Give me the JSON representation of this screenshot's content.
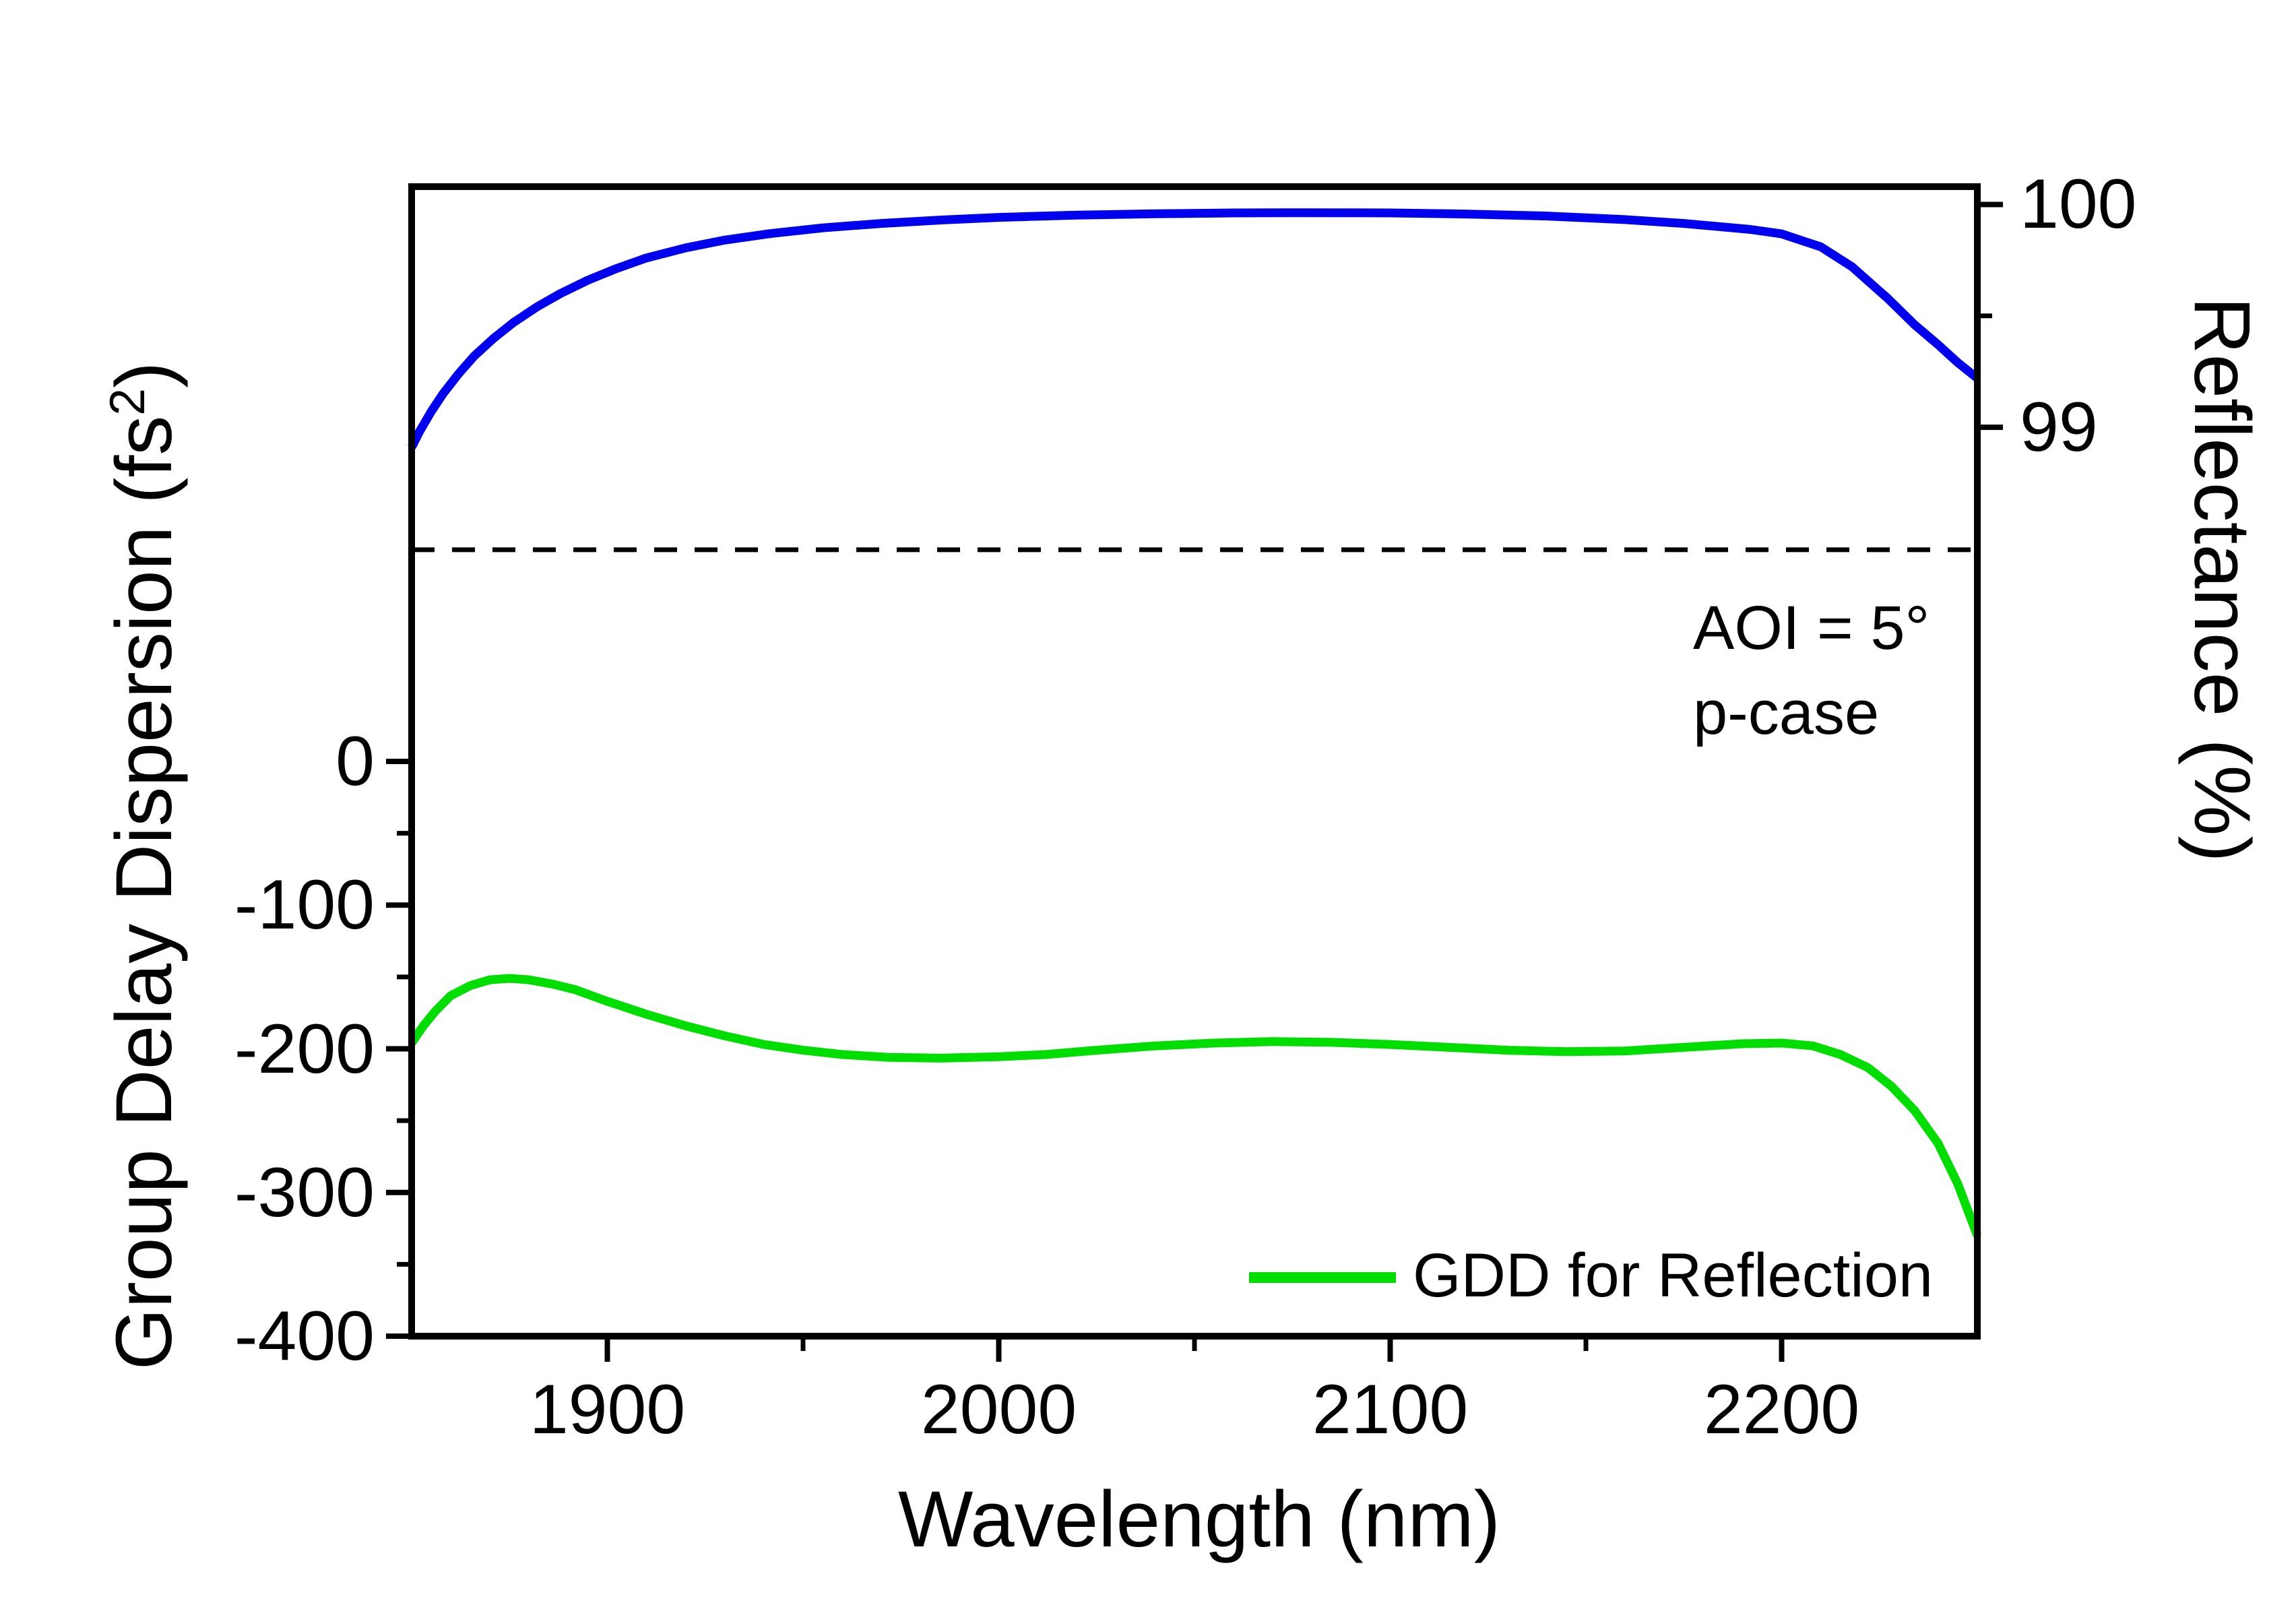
{
  "figure": {
    "background": "#ffffff",
    "frame_color": "#000000"
  },
  "plot": {
    "x_axis": {
      "label": "Wavelength (nm)",
      "range": [
        1850,
        2250
      ],
      "major_ticks": [
        1900,
        2000,
        2100,
        2200
      ],
      "minor_ticks": [
        1950,
        2050,
        2150
      ]
    },
    "y_axis_left": {
      "label_parts": [
        "Group Delay Dispersion (fs",
        "2",
        ")"
      ],
      "range": [
        -400,
        400
      ],
      "major_ticks": [
        0,
        -100,
        -200,
        -300,
        -400
      ],
      "minor_ticks": [
        -50,
        -150,
        -250,
        -350
      ]
    },
    "y_axis_right": {
      "label": "Reflectance (%)",
      "range": [
        94.92,
        100.08
      ],
      "major_ticks": [
        100,
        99
      ],
      "minor_ticks": [
        99.5
      ]
    },
    "annotations": {
      "aoi": "AOI = 5°",
      "case": "p-case"
    },
    "dashed_line": {
      "reflectance_value": 98.45,
      "color": "#000000"
    },
    "legend": {
      "label": "GDD for Reflection",
      "color": "#00dd00"
    }
  },
  "chart_data": {
    "type": "line",
    "title": "",
    "xlabel": "Wavelength (nm)",
    "ylabel_left": "Group Delay Dispersion (fs2)",
    "ylabel_right": "Reflectance (%)",
    "xlim": [
      1850,
      2250
    ],
    "ylim_left": [
      -400,
      400
    ],
    "ylim_right": [
      94.92,
      100.08
    ],
    "grid": false,
    "legend_position": "lower right",
    "guide_line": {
      "type": "horizontal-dashed",
      "axis": "right",
      "value": 98.45
    },
    "series": [
      {
        "name": "Reflectance",
        "axis": "right",
        "color": "#0000ee",
        "x": [
          1850,
          1852,
          1855,
          1858,
          1862,
          1866,
          1871,
          1876,
          1882,
          1888,
          1895,
          1902,
          1910,
          1920,
          1930,
          1942,
          1955,
          1970,
          1985,
          2000,
          2020,
          2040,
          2060,
          2080,
          2100,
          2120,
          2140,
          2160,
          2175,
          2192,
          2200,
          2210,
          2218,
          2227,
          2234,
          2240,
          2245,
          2250
        ],
        "y": [
          98.91,
          98.98,
          99.07,
          99.15,
          99.24,
          99.32,
          99.4,
          99.47,
          99.54,
          99.6,
          99.66,
          99.71,
          99.76,
          99.805,
          99.84,
          99.87,
          99.895,
          99.915,
          99.93,
          99.942,
          99.952,
          99.958,
          99.962,
          99.963,
          99.962,
          99.957,
          99.948,
          99.932,
          99.915,
          99.888,
          99.868,
          99.81,
          99.72,
          99.58,
          99.46,
          99.37,
          99.29,
          99.22
        ]
      },
      {
        "name": "GDD for Reflection",
        "axis": "left",
        "color": "#00dd00",
        "x": [
          1850,
          1853,
          1856,
          1860,
          1865,
          1870,
          1875,
          1880,
          1886,
          1892,
          1900,
          1910,
          1920,
          1930,
          1940,
          1950,
          1960,
          1972,
          1985,
          2000,
          2012,
          2025,
          2040,
          2055,
          2070,
          2085,
          2100,
          2115,
          2130,
          2145,
          2160,
          2175,
          2190,
          2200,
          2208,
          2215,
          2222,
          2228,
          2234,
          2240,
          2245,
          2250
        ],
        "y": [
          -196,
          -184,
          -174,
          -163,
          -156,
          -152,
          -151,
          -152,
          -155,
          -159,
          -167,
          -176,
          -184,
          -191,
          -197,
          -201,
          -204,
          -206,
          -206.5,
          -205.5,
          -204,
          -201,
          -198,
          -196,
          -195,
          -195.5,
          -197,
          -199,
          -201,
          -202,
          -201.5,
          -199,
          -196.5,
          -196,
          -198,
          -204,
          -213,
          -226,
          -243,
          -266,
          -294,
          -330
        ]
      }
    ]
  }
}
